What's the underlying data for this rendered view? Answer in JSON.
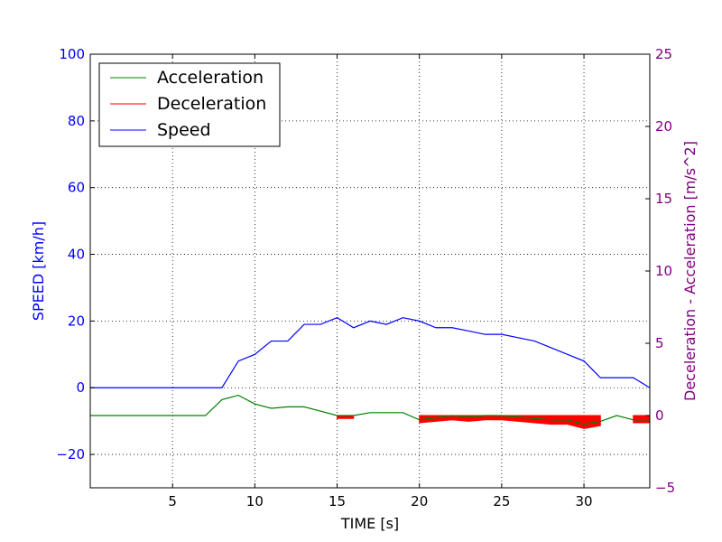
{
  "chart_data": {
    "type": "line",
    "xlabel": "TIME [s]",
    "ylabel_left": "SPEED [km/h]",
    "ylabel_right": "Deceleration - Acceleration [m/s^2]",
    "xlim": [
      0,
      34
    ],
    "ylim_left": [
      -30,
      100
    ],
    "ylim_right": [
      -5,
      25
    ],
    "xticks": [
      5,
      10,
      15,
      20,
      25,
      30
    ],
    "yticks_left": [
      -20,
      0,
      20,
      40,
      60,
      80,
      100
    ],
    "yticks_right": [
      -5,
      0,
      5,
      10,
      15,
      20,
      25
    ],
    "ytick_labels_left": [
      "−20",
      "0",
      "20",
      "40",
      "60",
      "80",
      "100"
    ],
    "ytick_labels_right": [
      "−5",
      "0",
      "5",
      "10",
      "15",
      "20",
      "25"
    ],
    "grid": true,
    "legend": {
      "position": "top-left",
      "entries": [
        {
          "label": "Acceleration",
          "color": "#008000"
        },
        {
          "label": "Deceleration",
          "color": "#ff0000"
        },
        {
          "label": "Speed",
          "color": "#0000ff"
        }
      ]
    },
    "colors": {
      "speed": "#0000ff",
      "acceleration": "#008000",
      "deceleration": "#ff0000",
      "left_axis": "#0000ff",
      "right_axis": "#800080",
      "text": "#000000"
    },
    "series": [
      {
        "name": "Speed",
        "axis": "left",
        "x": [
          0,
          1,
          2,
          3,
          4,
          5,
          6,
          7,
          8,
          9,
          10,
          11,
          12,
          13,
          14,
          15,
          16,
          17,
          18,
          19,
          20,
          21,
          22,
          23,
          24,
          25,
          26,
          27,
          28,
          29,
          30,
          31,
          32,
          33,
          34
        ],
        "values": [
          0,
          0,
          0,
          0,
          0,
          0,
          0,
          0,
          0,
          8,
          10,
          14,
          14,
          19,
          19,
          21,
          18,
          20,
          19,
          21,
          20,
          18,
          18,
          17,
          16,
          16,
          15,
          14,
          12,
          10,
          8,
          3,
          3,
          3,
          0
        ]
      },
      {
        "name": "Acceleration",
        "axis": "right",
        "x": [
          0,
          1,
          2,
          3,
          4,
          5,
          6,
          7,
          8,
          9,
          10,
          11,
          12,
          13,
          14,
          15,
          16,
          17,
          18,
          19,
          20,
          21,
          22,
          23,
          24,
          25,
          26,
          27,
          28,
          29,
          30,
          31,
          32,
          33,
          34
        ],
        "values": [
          0,
          0,
          0,
          0,
          0,
          0,
          0,
          0,
          1.1,
          1.4,
          0.8,
          0.5,
          0.6,
          0.6,
          0.3,
          0,
          0,
          0.2,
          0.2,
          0.2,
          -0.3,
          -0.15,
          0,
          -0.1,
          0,
          0,
          -0.1,
          -0.2,
          -0.3,
          -0.3,
          -0.6,
          -0.4,
          0,
          -0.3,
          -0.3
        ]
      },
      {
        "name": "Deceleration",
        "axis": "right",
        "segments": [
          {
            "x": [
              15,
              16
            ],
            "values": [
              -0.2,
              -0.2
            ]
          },
          {
            "x": [
              20,
              21,
              22,
              23,
              24,
              25,
              26,
              27,
              28,
              29,
              30,
              31
            ],
            "values": [
              -0.5,
              -0.4,
              -0.3,
              -0.4,
              -0.3,
              -0.3,
              -0.4,
              -0.5,
              -0.6,
              -0.6,
              -0.9,
              -0.7
            ]
          },
          {
            "x": [
              33,
              34
            ],
            "values": [
              -0.5,
              -0.5
            ]
          }
        ]
      }
    ]
  }
}
